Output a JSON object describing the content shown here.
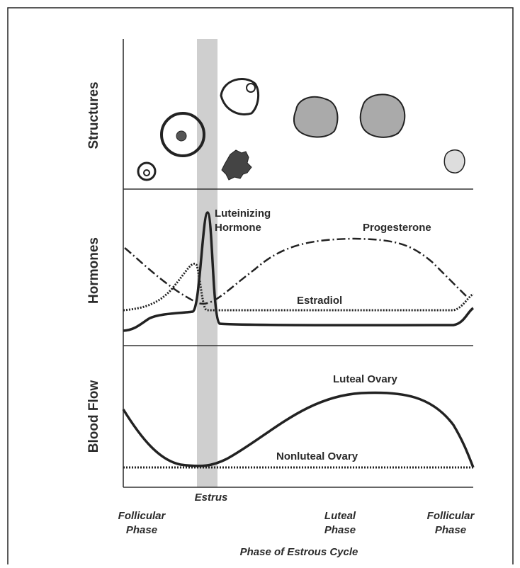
{
  "panels": {
    "structures": "Structures",
    "hormones": "Hormones",
    "blood_flow": "Blood Flow"
  },
  "curves": {
    "lh": [
      "Luteinizing",
      "Hormone"
    ],
    "progesterone": "Progesterone",
    "estradiol": "Estradiol",
    "luteal_ovary": "Luteal Ovary",
    "nonluteal_ovary": "Nonluteal Ovary"
  },
  "estrus": "Estrus",
  "phases": [
    [
      "Follicular",
      "Phase"
    ],
    [
      "Luteal",
      "Phase"
    ],
    [
      "Follicular",
      "Phase"
    ]
  ],
  "x_axis_title": "Phase of Estrous Cycle"
}
